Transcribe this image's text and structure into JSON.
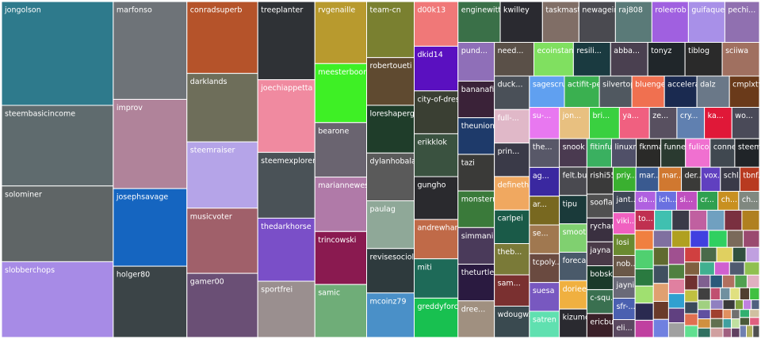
{
  "chart_data": {
    "type": "treemap",
    "items": [
      {
        "name": "jongolson",
        "value": 148,
        "color": "#2e7a8c"
      },
      {
        "name": "steembasicincome",
        "value": 115,
        "color": "#5f6b6e"
      },
      {
        "name": "solominer",
        "value": 108,
        "color": "#5f6566"
      },
      {
        "name": "slobberchops",
        "value": 108,
        "color": "#a78be6"
      },
      {
        "name": "marfonso",
        "value": 92,
        "color": "#6e7378"
      },
      {
        "name": "improv",
        "value": 84,
        "color": "#b0839a"
      },
      {
        "name": "josephsavage",
        "value": 73,
        "color": "#1565c0"
      },
      {
        "name": "holger80",
        "value": 67,
        "color": "#3b4447"
      },
      {
        "name": "conradsuperb",
        "value": 65,
        "color": "#b5532a"
      },
      {
        "name": "darklands",
        "value": 62,
        "color": "#6e6e5a"
      },
      {
        "name": "steemraiser",
        "value": 60,
        "color": "#b5a4e8"
      },
      {
        "name": "musicvoter",
        "value": 59,
        "color": "#a0606a"
      },
      {
        "name": "gamer00",
        "value": 58,
        "color": "#6a4f75"
      },
      {
        "name": "treeplanter",
        "value": 57,
        "color": "#2f3236"
      },
      {
        "name": "joechiappetta",
        "value": 53,
        "color": "#f08aa0"
      },
      {
        "name": "steemexplorers",
        "value": 48,
        "color": "#4a5257"
      },
      {
        "name": "thedarkhorse",
        "value": 46,
        "color": "#7a4fc8"
      },
      {
        "name": "sportfrei",
        "value": 41,
        "color": "#9a8f8f"
      },
      {
        "name": "rvgenaille",
        "value": 41,
        "color": "#b89a2e"
      },
      {
        "name": "meesterboom",
        "value": 39,
        "color": "#3ef025"
      },
      {
        "name": "bearone",
        "value": 36,
        "color": "#6a6470"
      },
      {
        "name": "mariannewest",
        "value": 36,
        "color": "#b07aa8"
      },
      {
        "name": "trincowski",
        "value": 35,
        "color": "#8a1a50"
      },
      {
        "name": "samic",
        "value": 35,
        "color": "#6fad78"
      },
      {
        "name": "team-cn",
        "value": 34,
        "color": "#7a8030"
      },
      {
        "name": "robertoueti",
        "value": 29,
        "color": "#5f4a30"
      },
      {
        "name": "loreshaperga...",
        "value": 29,
        "color": "#1f3d2a"
      },
      {
        "name": "dylanhobalart",
        "value": 29,
        "color": "#5a5a5a"
      },
      {
        "name": "paulag",
        "value": 29,
        "color": "#8fa898"
      },
      {
        "name": "revisesociol...",
        "value": 27,
        "color": "#2e3a3d"
      },
      {
        "name": "mcoinz79",
        "value": 27,
        "color": "#4a90c8"
      },
      {
        "name": "d00k13",
        "value": 25,
        "color": "#f07878"
      },
      {
        "name": "dkid14",
        "value": 25,
        "color": "#5a10c0"
      },
      {
        "name": "city-of-dres...",
        "value": 24,
        "color": "#3a3f33"
      },
      {
        "name": "erikklok",
        "value": 24,
        "color": "#3a5240"
      },
      {
        "name": "gungho",
        "value": 24,
        "color": "#2a2a2e"
      },
      {
        "name": "andrewharla...",
        "value": 22,
        "color": "#c06a48"
      },
      {
        "name": "miti",
        "value": 22,
        "color": "#1e6a58"
      },
      {
        "name": "greddyforce",
        "value": 22,
        "color": "#18c050"
      },
      {
        "name": "enginewitty",
        "value": 22,
        "color": "#3a7048"
      },
      {
        "name": "kwilley",
        "value": 22,
        "color": "#2a2a30"
      },
      {
        "name": "taskmaster...",
        "value": 19,
        "color": "#806e66"
      },
      {
        "name": "newageinv",
        "value": 19,
        "color": "#4a4a50"
      },
      {
        "name": "raj808",
        "value": 19,
        "color": "#5a7a78"
      },
      {
        "name": "roleerob",
        "value": 19,
        "color": "#a060e0"
      },
      {
        "name": "guifaquetti",
        "value": 19,
        "color": "#a890e8"
      },
      {
        "name": "pechi...",
        "value": 18,
        "color": "#9070b0"
      },
      {
        "name": "pund...",
        "value": 18,
        "color": "#8f6fb8"
      },
      {
        "name": "bananafish",
        "value": 17,
        "color": "#3a2238"
      },
      {
        "name": "theunion",
        "value": 17,
        "color": "#1e3a6a"
      },
      {
        "name": "tazi",
        "value": 17,
        "color": "#3a3a38"
      },
      {
        "name": "monsterm...",
        "value": 17,
        "color": "#3a7a3a"
      },
      {
        "name": "simmani",
        "value": 17,
        "color": "#4a3a5a"
      },
      {
        "name": "theturtlepr...",
        "value": 17,
        "color": "#2a1a40"
      },
      {
        "name": "dree...",
        "value": 17,
        "color": "#a09080"
      },
      {
        "name": "need...",
        "value": 17,
        "color": "#5a5048"
      },
      {
        "name": "ecoinstant",
        "value": 17,
        "color": "#80e060"
      },
      {
        "name": "resili...",
        "value": 16,
        "color": "#1a3a40"
      },
      {
        "name": "abba...",
        "value": 16,
        "color": "#4a4050"
      },
      {
        "name": "tonyz",
        "value": 16,
        "color": "#20262a"
      },
      {
        "name": "tiblog",
        "value": 16,
        "color": "#2a2a2a"
      },
      {
        "name": "sciiwa",
        "value": 16,
        "color": "#a07060"
      },
      {
        "name": "duck...",
        "value": 15,
        "color": "#4a5058"
      },
      {
        "name": "full-...",
        "value": 15,
        "color": "#e0b8c8"
      },
      {
        "name": "prin...",
        "value": 15,
        "color": "#3a3a48"
      },
      {
        "name": "defineth...",
        "value": 15,
        "color": "#f0a860"
      },
      {
        "name": "carlpei",
        "value": 15,
        "color": "#1a5a48"
      },
      {
        "name": "theb...",
        "value": 14,
        "color": "#7a7a38"
      },
      {
        "name": "sam...",
        "value": 14,
        "color": "#7a3030"
      },
      {
        "name": "wdougw...",
        "value": 14,
        "color": "#3a4a50"
      },
      {
        "name": "sagescrub",
        "value": 14,
        "color": "#60a0f0"
      },
      {
        "name": "actifit-pe...",
        "value": 14,
        "color": "#3ab050"
      },
      {
        "name": "silvertop",
        "value": 13,
        "color": "#505860"
      },
      {
        "name": "bluengel",
        "value": 13,
        "color": "#f07050"
      },
      {
        "name": "accelerator",
        "value": 13,
        "color": "#1a2a50"
      },
      {
        "name": "dalz",
        "value": 13,
        "color": "#6a7888"
      },
      {
        "name": "cmplxty",
        "value": 12,
        "color": "#6a3a1a"
      },
      {
        "name": "su-...",
        "value": 12,
        "color": "#e878f0"
      },
      {
        "name": "jon...",
        "value": 12,
        "color": "#e8c080"
      },
      {
        "name": "bri...",
        "value": 12,
        "color": "#3ad040"
      },
      {
        "name": "ya...",
        "value": 12,
        "color": "#f06080"
      },
      {
        "name": "ze...",
        "value": 11,
        "color": "#585060"
      },
      {
        "name": "cry...",
        "value": 11,
        "color": "#6080b0"
      },
      {
        "name": "ka...",
        "value": 11,
        "color": "#e01838"
      },
      {
        "name": "wo...",
        "value": 11,
        "color": "#4a4a58"
      },
      {
        "name": "the...",
        "value": 11,
        "color": "#585868"
      },
      {
        "name": "ag...",
        "value": 11,
        "color": "#3a28a0"
      },
      {
        "name": "ar...",
        "value": 11,
        "color": "#786820"
      },
      {
        "name": "se...",
        "value": 11,
        "color": "#a07850"
      },
      {
        "name": "tcpoly...",
        "value": 11,
        "color": "#6a4a40"
      },
      {
        "name": "suesa",
        "value": 11,
        "color": "#7858c0"
      },
      {
        "name": "satren",
        "value": 10,
        "color": "#60e0b0"
      },
      {
        "name": "snook",
        "value": 10,
        "color": "#4a3a50"
      },
      {
        "name": "felt.buzz",
        "value": 10,
        "color": "#4a4a50"
      },
      {
        "name": "tipu",
        "value": 10,
        "color": "#1a3a3a"
      },
      {
        "name": "smooth...",
        "value": 10,
        "color": "#80d070"
      },
      {
        "name": "foreca...",
        "value": 10,
        "color": "#4a5a6a"
      },
      {
        "name": "doriee...",
        "value": 10,
        "color": "#f0b040"
      },
      {
        "name": "kizumo",
        "value": 10,
        "color": "#2a2a30"
      },
      {
        "name": "fitinfun",
        "value": 9,
        "color": "#3ab060"
      },
      {
        "name": "linuxm...",
        "value": 9,
        "color": "#505068"
      },
      {
        "name": "fknma...",
        "value": 9,
        "color": "#2a2a28"
      },
      {
        "name": "funnel",
        "value": 9,
        "color": "#2a3a30"
      },
      {
        "name": "fulico...",
        "value": 9,
        "color": "#f070d0"
      },
      {
        "name": "conne...",
        "value": 9,
        "color": "#404850"
      },
      {
        "name": "steem...",
        "value": 9,
        "color": "#202428"
      },
      {
        "name": "rishi556",
        "value": 9,
        "color": "#3a3a3a"
      },
      {
        "name": "soofla...",
        "value": 8,
        "color": "#505050"
      },
      {
        "name": "rychar...",
        "value": 8,
        "color": "#3a3040"
      },
      {
        "name": "jayna",
        "value": 8,
        "color": "#4a3a48"
      },
      {
        "name": "bobsk...",
        "value": 8,
        "color": "#1a3a2a"
      },
      {
        "name": "c-squ...",
        "value": 8,
        "color": "#3a7050"
      },
      {
        "name": "ericbu...",
        "value": 8,
        "color": "#3a2028"
      },
      {
        "name": "priy...",
        "value": 7,
        "color": "#3ab030"
      },
      {
        "name": "mar...",
        "value": 7,
        "color": "#3a5a90"
      },
      {
        "name": "mar...",
        "value": 7,
        "color": "#d07830"
      },
      {
        "name": "der...",
        "value": 6,
        "color": "#3a3a38"
      },
      {
        "name": "vox...",
        "value": 6,
        "color": "#6040c0"
      },
      {
        "name": "schl...",
        "value": 6,
        "color": "#3a3a48"
      },
      {
        "name": "tbnf...",
        "value": 6,
        "color": "#b83a20"
      },
      {
        "name": "jant...",
        "value": 6,
        "color": "#404858"
      },
      {
        "name": "viki...",
        "value": 6,
        "color": "#f060c0"
      },
      {
        "name": "losi",
        "value": 6,
        "color": "#6a8a30"
      },
      {
        "name": "nob...",
        "value": 6,
        "color": "#6a5848"
      },
      {
        "name": "jaynie",
        "value": 6,
        "color": "#6a6a78"
      },
      {
        "name": "sfr-...",
        "value": 6,
        "color": "#4a60b0"
      },
      {
        "name": "eli...",
        "value": 5,
        "color": "#5a4860"
      },
      {
        "name": "da...",
        "value": 5,
        "color": "#b060e0"
      },
      {
        "name": "ich...",
        "value": 5,
        "color": "#6a70e0"
      },
      {
        "name": "si...",
        "value": 5,
        "color": "#c050c0"
      },
      {
        "name": "cr...",
        "value": 5,
        "color": "#30a050"
      },
      {
        "name": "ch...",
        "value": 5,
        "color": "#c89020"
      },
      {
        "name": "ch...",
        "value": 5,
        "color": "#808880"
      },
      {
        "name": "to...",
        "value": 5,
        "color": "#c03050"
      },
      {
        "name": null,
        "value": 4.5,
        "color": "#40c0b0"
      },
      {
        "name": null,
        "value": 4.5,
        "color": "#3a3a48"
      },
      {
        "name": null,
        "value": 4.5,
        "color": "#c060a0"
      },
      {
        "name": null,
        "value": 4.5,
        "color": "#70a0c0"
      },
      {
        "name": null,
        "value": 4.5,
        "color": "#7a3040"
      },
      {
        "name": null,
        "value": 4.5,
        "color": "#b08020"
      },
      {
        "name": null,
        "value": 4.5,
        "color": "#f08040"
      },
      {
        "name": null,
        "value": 4.5,
        "color": "#50d070"
      },
      {
        "name": null,
        "value": 4,
        "color": "#2a7a40"
      },
      {
        "name": null,
        "value": 4,
        "color": "#a0e070"
      },
      {
        "name": null,
        "value": 4,
        "color": "#2a2a50"
      },
      {
        "name": null,
        "value": 4,
        "color": "#c040a0"
      },
      {
        "name": null,
        "value": 4,
        "color": "#8070a0"
      },
      {
        "name": null,
        "value": 4,
        "color": "#b0a020"
      },
      {
        "name": null,
        "value": 4,
        "color": "#4040e0"
      },
      {
        "name": null,
        "value": 4,
        "color": "#30d060"
      },
      {
        "name": null,
        "value": 3.5,
        "color": "#7a6a5a"
      },
      {
        "name": null,
        "value": 3.5,
        "color": "#9a4a70"
      },
      {
        "name": null,
        "value": 3.5,
        "color": "#606a30"
      },
      {
        "name": null,
        "value": 3.5,
        "color": "#405060"
      },
      {
        "name": null,
        "value": 3.5,
        "color": "#e0a070"
      },
      {
        "name": null,
        "value": 3.5,
        "color": "#6a3a2a"
      },
      {
        "name": null,
        "value": 3.5,
        "color": "#7080e0"
      },
      {
        "name": null,
        "value": 3.5,
        "color": "#a05090"
      },
      {
        "name": null,
        "value": 3,
        "color": "#508040"
      },
      {
        "name": null,
        "value": 3,
        "color": "#e080a0"
      },
      {
        "name": null,
        "value": 3,
        "color": "#30a0d0"
      },
      {
        "name": null,
        "value": 3,
        "color": "#604080"
      },
      {
        "name": null,
        "value": 3,
        "color": "#a0a0a0"
      },
      {
        "name": null,
        "value": 3,
        "color": "#d04040"
      },
      {
        "name": null,
        "value": 3,
        "color": "#4a6a4a"
      },
      {
        "name": null,
        "value": 3,
        "color": "#e0d060"
      },
      {
        "name": null,
        "value": 2.5,
        "color": "#305040"
      },
      {
        "name": null,
        "value": 2.5,
        "color": "#c0a0e0"
      },
      {
        "name": null,
        "value": 2.5,
        "color": "#806040"
      },
      {
        "name": null,
        "value": 2.5,
        "color": "#40b090"
      },
      {
        "name": null,
        "value": 2.5,
        "color": "#d060d0"
      },
      {
        "name": null,
        "value": 2.5,
        "color": "#505a70"
      },
      {
        "name": null,
        "value": 2.5,
        "color": "#90c050"
      },
      {
        "name": null,
        "value": 2.5,
        "color": "#703030"
      },
      {
        "name": null,
        "value": 2,
        "color": "#c0c040"
      },
      {
        "name": null,
        "value": 2,
        "color": "#3a4a5a"
      },
      {
        "name": null,
        "value": 2,
        "color": "#e07050"
      },
      {
        "name": null,
        "value": 2,
        "color": "#60e090"
      },
      {
        "name": null,
        "value": 2,
        "color": "#806090"
      },
      {
        "name": null,
        "value": 2,
        "color": "#2a5a7a"
      },
      {
        "name": null,
        "value": 2,
        "color": "#b07060"
      },
      {
        "name": null,
        "value": 2,
        "color": "#50a050"
      },
      {
        "name": null,
        "value": 2,
        "color": "#e0b0c0"
      },
      {
        "name": null,
        "value": 2,
        "color": "#404040"
      },
      {
        "name": null,
        "value": 1.5,
        "color": "#a0d080"
      },
      {
        "name": null,
        "value": 1.5,
        "color": "#6050a0"
      },
      {
        "name": null,
        "value": 1.5,
        "color": "#d09040"
      },
      {
        "name": null,
        "value": 1.5,
        "color": "#307060"
      },
      {
        "name": null,
        "value": 1.5,
        "color": "#c05070"
      },
      {
        "name": null,
        "value": 1.5,
        "color": "#7090a0"
      },
      {
        "name": null,
        "value": 1.5,
        "color": "#e0e080"
      },
      {
        "name": null,
        "value": 1.5,
        "color": "#504030"
      },
      {
        "name": null,
        "value": 1.5,
        "color": "#40c040"
      },
      {
        "name": null,
        "value": 1.5,
        "color": "#9080c0"
      },
      {
        "name": null,
        "value": 1.5,
        "color": "#a04030"
      },
      {
        "name": null,
        "value": 1.5,
        "color": "#607050"
      },
      {
        "name": null,
        "value": 1.5,
        "color": "#d0a0a0"
      },
      {
        "name": null,
        "value": 1.5,
        "color": "#3a3a3a"
      },
      {
        "name": null,
        "value": 1,
        "color": "#80a040"
      },
      {
        "name": null,
        "value": 1,
        "color": "#c080e0"
      },
      {
        "name": null,
        "value": 1,
        "color": "#506080"
      },
      {
        "name": null,
        "value": 1,
        "color": "#e09060"
      },
      {
        "name": null,
        "value": 1,
        "color": "#40a0a0"
      },
      {
        "name": null,
        "value": 1,
        "color": "#a06080"
      },
      {
        "name": null,
        "value": 1,
        "color": "#707070"
      },
      {
        "name": null,
        "value": 1,
        "color": "#c0e0a0"
      },
      {
        "name": null,
        "value": 1,
        "color": "#604060"
      },
      {
        "name": null,
        "value": 1,
        "color": "#30b070"
      },
      {
        "name": null,
        "value": 1,
        "color": "#d0c0a0"
      },
      {
        "name": null,
        "value": 1,
        "color": "#4a5a3a"
      },
      {
        "name": null,
        "value": 1,
        "color": "#e06080"
      },
      {
        "name": null,
        "value": 1,
        "color": "#7080b0"
      },
      {
        "name": null,
        "value": 1,
        "color": "#b0b060"
      },
      {
        "name": null,
        "value": 1,
        "color": "#505050"
      }
    ]
  }
}
